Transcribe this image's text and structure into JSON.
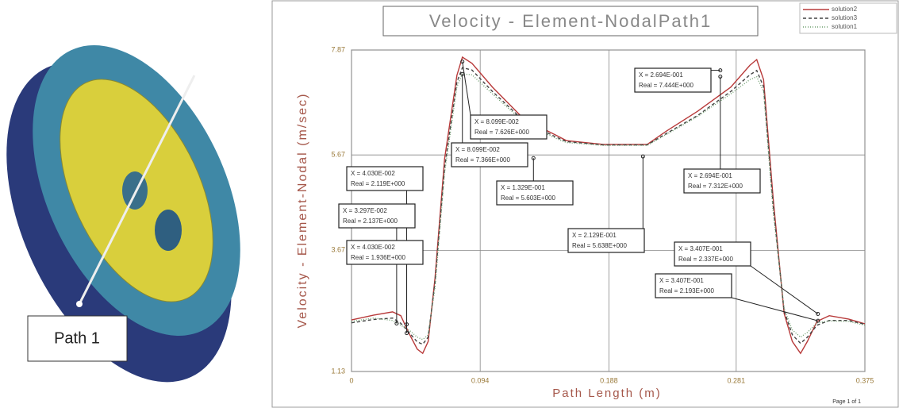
{
  "path_label": "Path 1",
  "chart_data": {
    "type": "line",
    "title": "Velocity - Element-NodalPath1",
    "y_label": "Velocity - Element-Nodal (m/sec)",
    "x_label": "Path Length (m)",
    "footer": "Page 1 of 1",
    "xlim": [
      0,
      0.375
    ],
    "xticks": [
      0,
      0.094,
      0.188,
      0.281,
      0.375
    ],
    "ylim": [
      1.13,
      7.87
    ],
    "yticks": [
      1.13,
      3.67,
      5.67,
      7.87
    ],
    "grid": true,
    "legend": "top-right",
    "x": [
      0,
      0.016,
      0.03,
      0.036,
      0.042,
      0.048,
      0.052,
      0.056,
      0.061,
      0.068,
      0.077,
      0.081,
      0.088,
      0.103,
      0.126,
      0.149,
      0.157,
      0.184,
      0.216,
      0.23,
      0.253,
      0.277,
      0.291,
      0.296,
      0.301,
      0.308,
      0.316,
      0.322,
      0.328,
      0.333,
      0.34,
      0.349,
      0.363,
      0.375
    ],
    "series": [
      {
        "name": "solution2",
        "color": "#b83a3a",
        "dash": "none",
        "values": [
          2.21,
          2.31,
          2.38,
          2.3,
          1.93,
          1.6,
          1.51,
          1.76,
          3.09,
          5.59,
          7.34,
          7.72,
          7.59,
          7.09,
          6.42,
          6.09,
          5.97,
          5.89,
          5.89,
          6.17,
          6.59,
          7.09,
          7.55,
          7.67,
          7.25,
          4.76,
          2.35,
          1.76,
          1.51,
          1.76,
          2.18,
          2.3,
          2.23,
          2.13
        ]
      },
      {
        "name": "solution3",
        "color": "#444444",
        "dash": "4 3",
        "values": [
          2.15,
          2.22,
          2.25,
          2.14,
          1.95,
          1.75,
          1.7,
          1.85,
          3.0,
          5.4,
          7.2,
          7.5,
          7.45,
          7.0,
          6.38,
          6.05,
          5.95,
          5.88,
          5.88,
          6.12,
          6.5,
          7.0,
          7.35,
          7.44,
          7.1,
          4.6,
          2.4,
          1.9,
          1.72,
          1.85,
          2.1,
          2.2,
          2.2,
          2.12
        ]
      },
      {
        "name": "solution1",
        "color": "#6f9f6f",
        "dash": "1 2",
        "values": [
          2.18,
          2.25,
          2.2,
          2.1,
          2.0,
          1.85,
          1.8,
          1.9,
          2.9,
          5.3,
          7.1,
          7.37,
          7.35,
          6.95,
          6.35,
          6.02,
          5.93,
          5.87,
          5.87,
          6.1,
          6.48,
          6.95,
          7.25,
          7.31,
          7.0,
          4.5,
          2.45,
          2.0,
          1.85,
          1.95,
          2.15,
          2.19,
          2.18,
          2.1
        ]
      }
    ],
    "annotations": [
      {
        "x_text": "X = 4.030E-002",
        "y_text": "Real = 2.119E+000",
        "x": 0.0403,
        "y": 2.119
      },
      {
        "x_text": "X = 3.297E-002",
        "y_text": "Real = 2.137E+000",
        "x": 0.03297,
        "y": 2.137
      },
      {
        "x_text": "X = 4.030E-002",
        "y_text": "Real = 1.936E+000",
        "x": 0.0403,
        "y": 1.936
      },
      {
        "x_text": "X = 8.099E-002",
        "y_text": "Real = 7.626E+000",
        "x": 0.08099,
        "y": 7.626
      },
      {
        "x_text": "X = 8.099E-002",
        "y_text": "Real = 7.366E+000",
        "x": 0.08099,
        "y": 7.366
      },
      {
        "x_text": "X = 1.329E-001",
        "y_text": "Real = 5.603E+000",
        "x": 0.1329,
        "y": 5.603
      },
      {
        "x_text": "X = 2.129E-001",
        "y_text": "Real = 5.638E+000",
        "x": 0.2129,
        "y": 5.638
      },
      {
        "x_text": "X = 2.694E-001",
        "y_text": "Real = 7.444E+000",
        "x": 0.2694,
        "y": 7.444
      },
      {
        "x_text": "X = 2.694E-001",
        "y_text": "Real = 7.312E+000",
        "x": 0.2694,
        "y": 7.312
      },
      {
        "x_text": "X = 3.407E-001",
        "y_text": "Real = 2.337E+000",
        "x": 0.3407,
        "y": 2.337
      },
      {
        "x_text": "X = 3.407E-001",
        "y_text": "Real = 2.193E+000",
        "x": 0.3407,
        "y": 2.193
      }
    ]
  }
}
